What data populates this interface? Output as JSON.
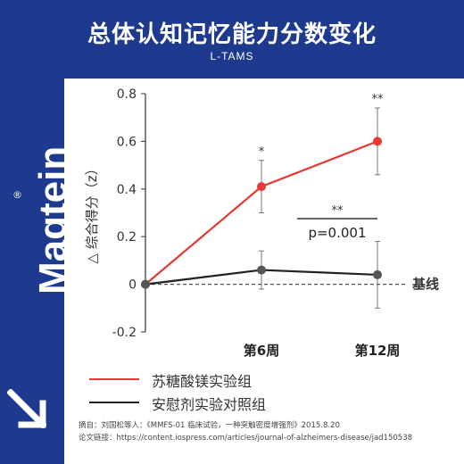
{
  "header": {
    "title": "总体认知记忆能力分数变化",
    "subtitle": "L-TAMS"
  },
  "brand": {
    "name": "Magtein",
    "reg_mark": "®"
  },
  "colors": {
    "background": "#1e3a8e",
    "treatment": "#e53935",
    "placebo": "#222222",
    "significance": "#333333"
  },
  "chart_data": {
    "type": "line",
    "ylabel": "△ 综合得分（z）",
    "categories": [
      "0",
      "第6周",
      "第12周"
    ],
    "ylim": [
      -0.2,
      0.8
    ],
    "yticks": [
      "-0.2",
      "0",
      "0.2",
      "0.4",
      "0.6",
      "0.8"
    ],
    "baseline_label": "基线",
    "grid": false,
    "series": [
      {
        "name": "苏糖酸镁实验组",
        "values": [
          0,
          0.41,
          0.6
        ],
        "err_high": [
          0,
          0.52,
          0.74
        ],
        "err_low": [
          0,
          0.3,
          0.46
        ],
        "sig": [
          "",
          "*",
          "**"
        ]
      },
      {
        "name": "安慰剂实验对照组",
        "values": [
          0,
          0.06,
          0.04
        ],
        "err_high": [
          0,
          0.14,
          0.18
        ],
        "err_low": [
          0,
          -0.02,
          -0.1
        ],
        "sig": [
          "",
          "",
          ""
        ]
      }
    ],
    "comparison": {
      "stars": "**",
      "label": "p=0.001"
    }
  },
  "footer": {
    "citation": "摘自：刘国松等人：《MMFS-01 临床试验，一种突触密度增强剂》2015.8.20",
    "link": "论文链接：https://content.iospress.com/articles/journal-of-alzheimers-disease/jad150538"
  }
}
